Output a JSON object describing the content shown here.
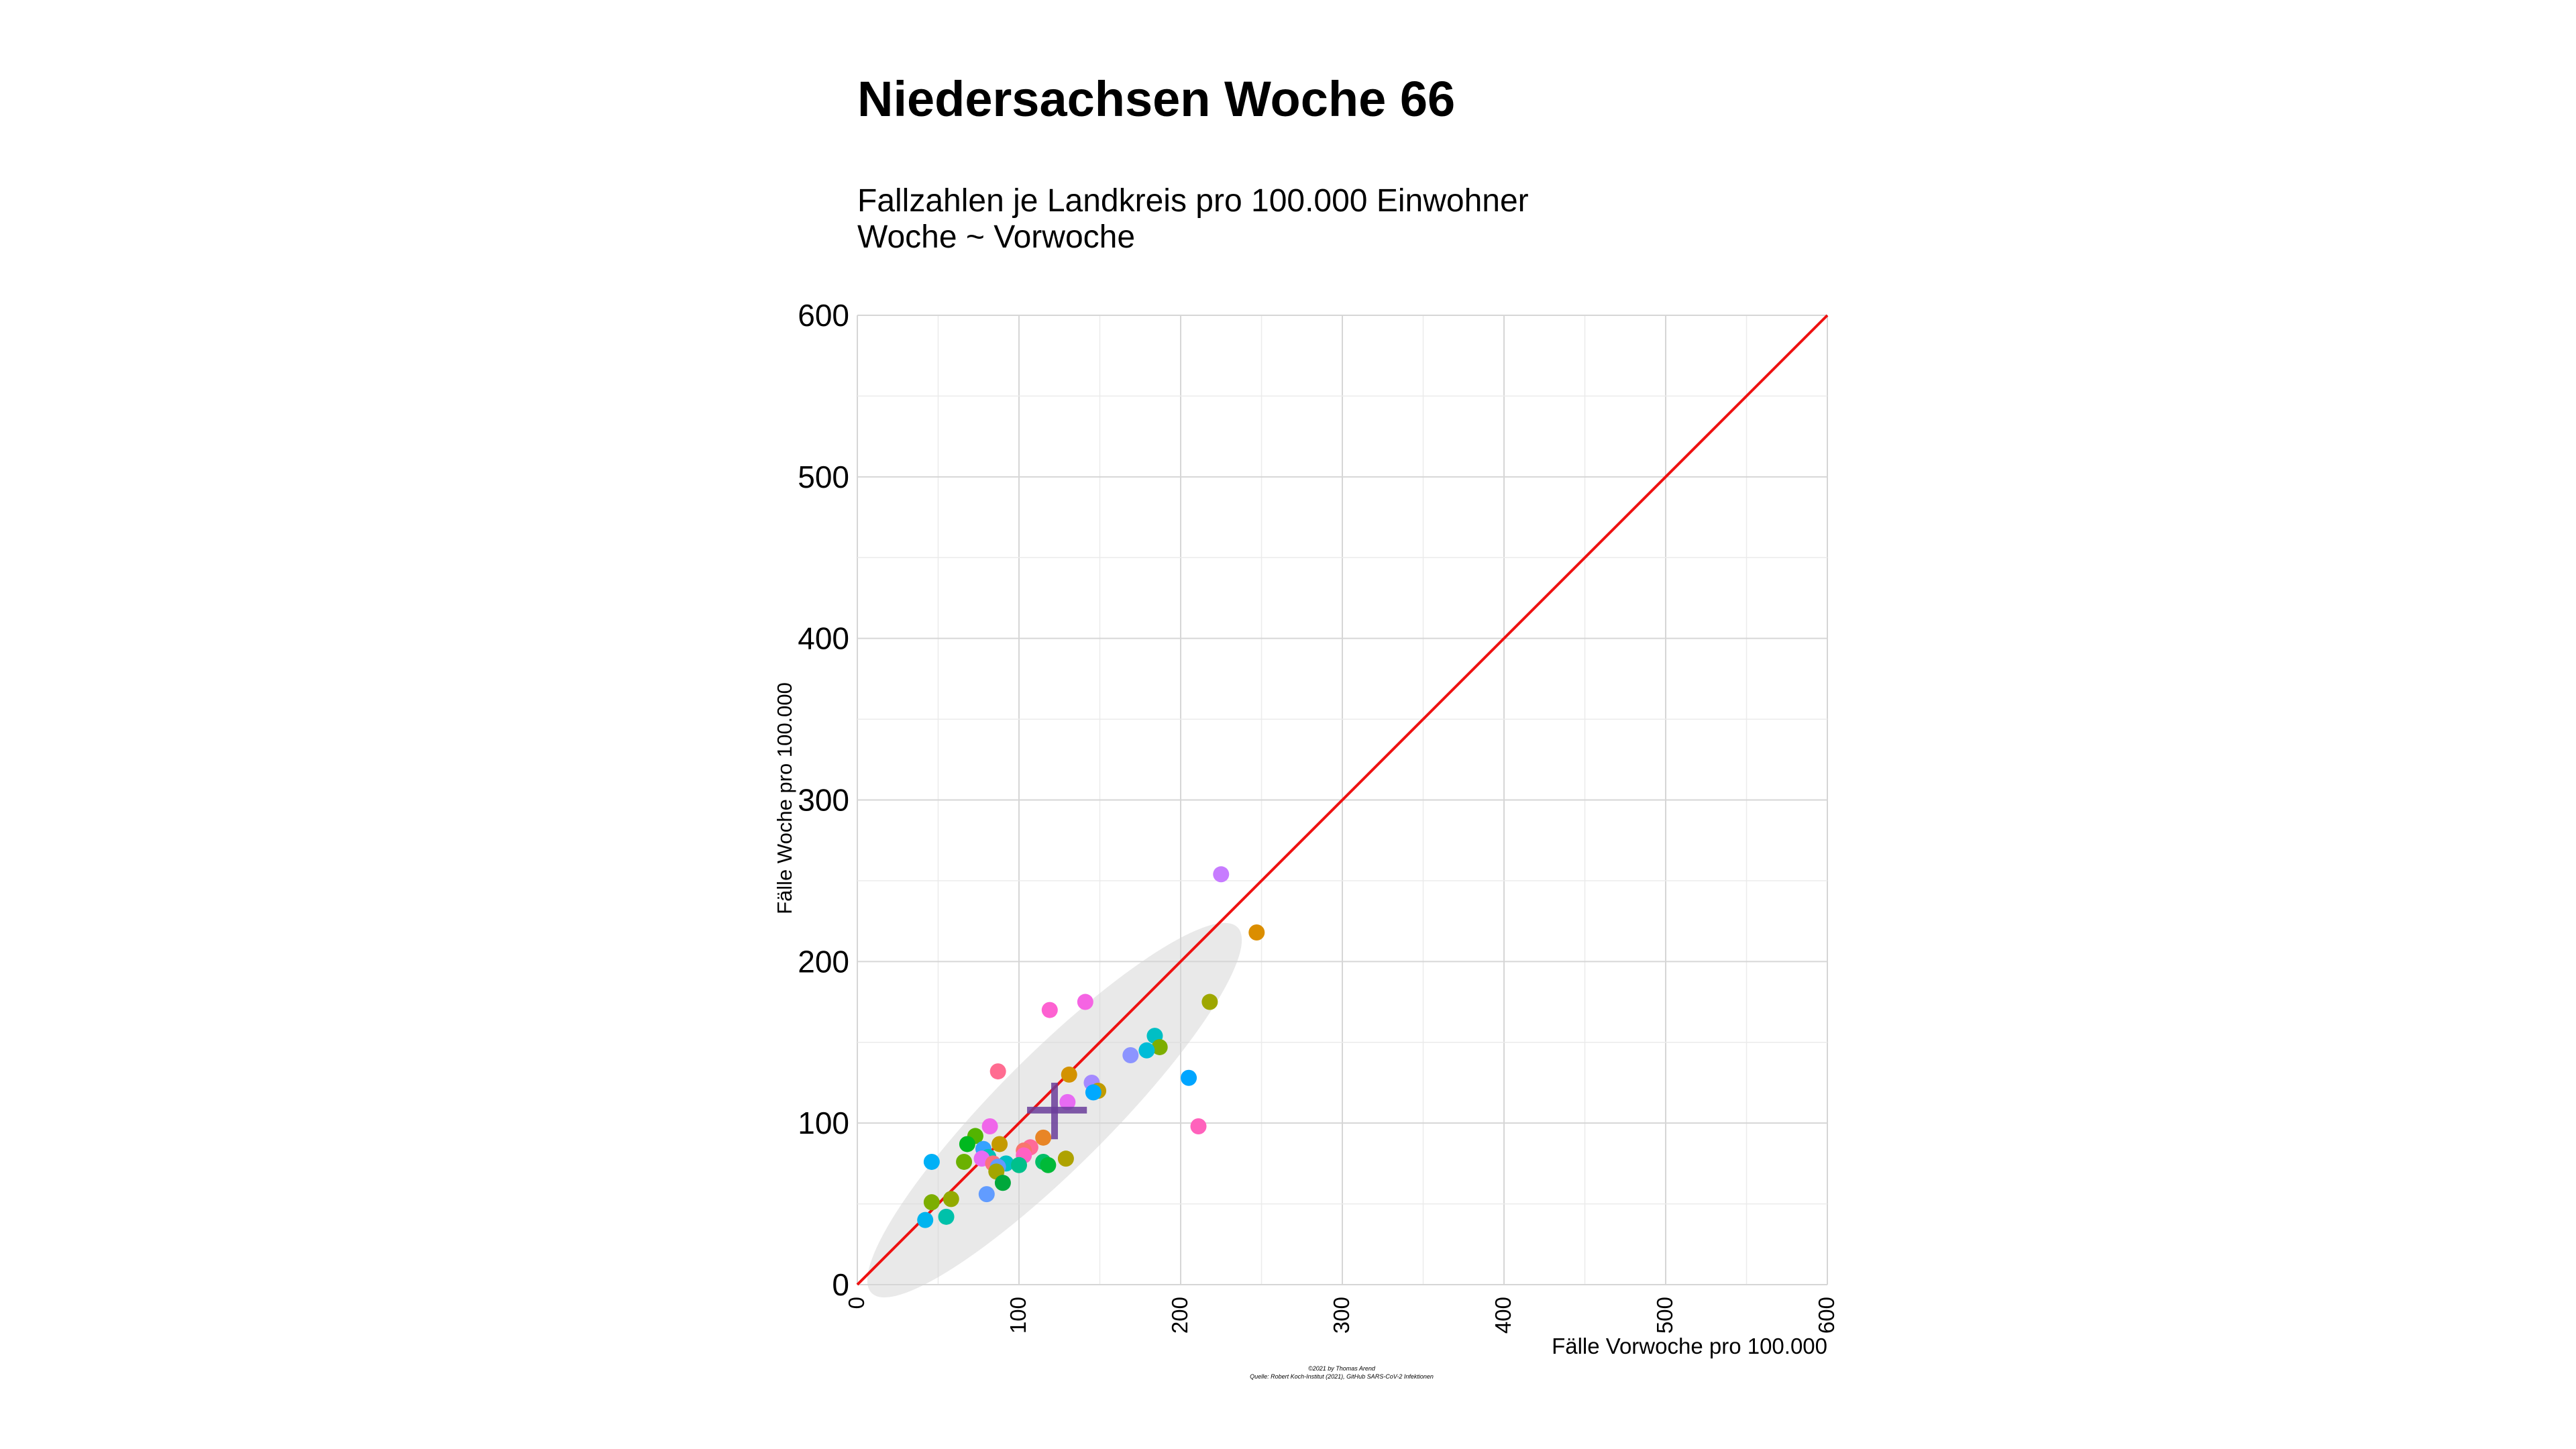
{
  "chart_data": {
    "type": "scatter",
    "title": "Niedersachsen Woche 66",
    "subtitle": [
      "Fallzahlen je Landkreis pro 100.000 Einwohner",
      "Woche ~ Vorwoche"
    ],
    "xlabel": "Fälle Vorwoche pro 100.000",
    "ylabel": "Fälle Woche pro 100.000",
    "xlim": [
      0,
      600
    ],
    "ylim": [
      0,
      600
    ],
    "x_ticks": [
      "0",
      "100",
      "200",
      "300",
      "400",
      "500",
      "600"
    ],
    "y_ticks": [
      "0",
      "100",
      "200",
      "300",
      "400",
      "500",
      "600"
    ],
    "grid": true,
    "legend": "none",
    "reference_line": {
      "from": [
        0,
        0
      ],
      "to": [
        600,
        600
      ],
      "color": "#ee1111"
    },
    "ellipse": {
      "center": [
        122,
        108
      ],
      "semi_major": 160,
      "semi_minor": 35,
      "angle_deg": 45,
      "color": "#d3d3d3"
    },
    "mean_cross": {
      "x": 122,
      "y": 108,
      "x_range": [
        105,
        142
      ],
      "y_range": [
        90,
        125
      ],
      "color": "#6a3d9a"
    },
    "points": [
      {
        "x": 225,
        "y": 254,
        "color": "#c77cff"
      },
      {
        "x": 247,
        "y": 218,
        "color": "#db8e00"
      },
      {
        "x": 218,
        "y": 175,
        "color": "#9ea700"
      },
      {
        "x": 141,
        "y": 175,
        "color": "#f564e3"
      },
      {
        "x": 119,
        "y": 170,
        "color": "#fd61d1"
      },
      {
        "x": 184,
        "y": 154,
        "color": "#00bfc4"
      },
      {
        "x": 187,
        "y": 147,
        "color": "#7cae00"
      },
      {
        "x": 179,
        "y": 145,
        "color": "#00bcd8"
      },
      {
        "x": 169,
        "y": 142,
        "color": "#8c94ff"
      },
      {
        "x": 87,
        "y": 132,
        "color": "#ff6c91"
      },
      {
        "x": 131,
        "y": 130,
        "color": "#d39200"
      },
      {
        "x": 205,
        "y": 128,
        "color": "#00a5ff"
      },
      {
        "x": 145,
        "y": 125,
        "color": "#a58aff"
      },
      {
        "x": 149,
        "y": 120,
        "color": "#c09b00"
      },
      {
        "x": 146,
        "y": 119,
        "color": "#00a9ff"
      },
      {
        "x": 130,
        "y": 113,
        "color": "#e76bf3"
      },
      {
        "x": 211,
        "y": 98,
        "color": "#ff62bc"
      },
      {
        "x": 82,
        "y": 98,
        "color": "#f066ea"
      },
      {
        "x": 73,
        "y": 92,
        "color": "#53b400"
      },
      {
        "x": 115,
        "y": 91,
        "color": "#e88526"
      },
      {
        "x": 88,
        "y": 87,
        "color": "#c49a00"
      },
      {
        "x": 68,
        "y": 87,
        "color": "#00b81f"
      },
      {
        "x": 78,
        "y": 84,
        "color": "#35a2ff"
      },
      {
        "x": 107,
        "y": 85,
        "color": "#ff6a98"
      },
      {
        "x": 103,
        "y": 83,
        "color": "#f8766d"
      },
      {
        "x": 103,
        "y": 80,
        "color": "#ff61c3"
      },
      {
        "x": 81,
        "y": 79,
        "color": "#00c0b8"
      },
      {
        "x": 77,
        "y": 78,
        "color": "#e76bf3"
      },
      {
        "x": 129,
        "y": 78,
        "color": "#aea200"
      },
      {
        "x": 66,
        "y": 76,
        "color": "#6bb100"
      },
      {
        "x": 46,
        "y": 76,
        "color": "#00b0f6"
      },
      {
        "x": 115,
        "y": 76,
        "color": "#00be67"
      },
      {
        "x": 84,
        "y": 75,
        "color": "#fc717f"
      },
      {
        "x": 92,
        "y": 75,
        "color": "#00bfc4"
      },
      {
        "x": 118,
        "y": 74,
        "color": "#00ba38"
      },
      {
        "x": 87,
        "y": 73,
        "color": "#619cff"
      },
      {
        "x": 100,
        "y": 74,
        "color": "#00c08b"
      },
      {
        "x": 86,
        "y": 70,
        "color": "#a3a500"
      },
      {
        "x": 90,
        "y": 63,
        "color": "#00a83b"
      },
      {
        "x": 80,
        "y": 56,
        "color": "#619cff"
      },
      {
        "x": 58,
        "y": 53,
        "color": "#93aa00"
      },
      {
        "x": 46,
        "y": 51,
        "color": "#7cae00"
      },
      {
        "x": 55,
        "y": 42,
        "color": "#00c1aa"
      },
      {
        "x": 42,
        "y": 40,
        "color": "#00b4ef"
      }
    ],
    "caption": [
      "©2021 by Thomas Arend",
      "Quelle: Robert Koch-Institut (2021), GitHub SARS-CoV-2 Infektionen"
    ]
  }
}
